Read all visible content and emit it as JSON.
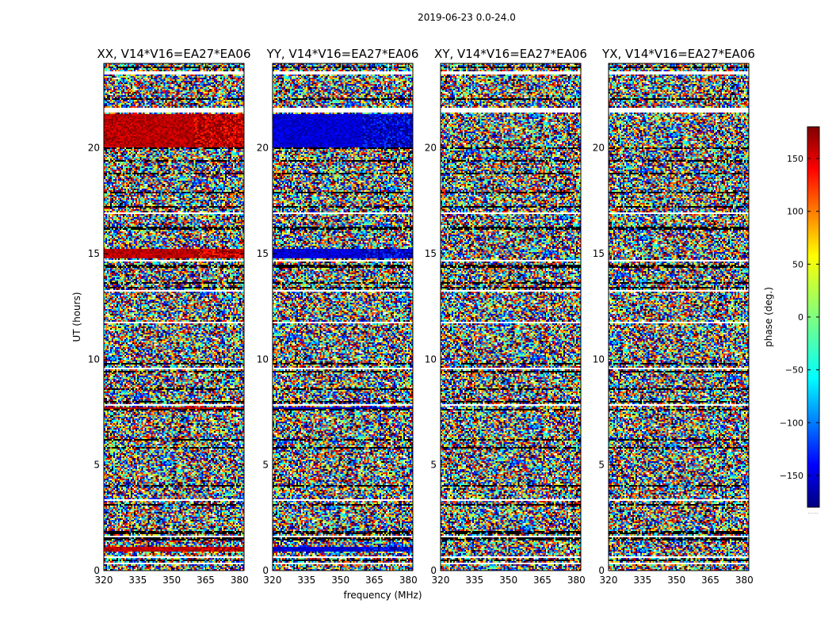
{
  "figure": {
    "suptitle": "2019-06-23 0.0-24.0"
  },
  "chart_data": {
    "type": "heatmap",
    "title": "2019-06-23 0.0-24.0",
    "xlabel": "frequency (MHz)",
    "ylabel": "UT (hours)",
    "xlim": [
      320,
      382
    ],
    "ylim": [
      0,
      24
    ],
    "xticks": [
      320,
      335,
      350,
      365,
      380
    ],
    "yticks": [
      0,
      5,
      10,
      15,
      20
    ],
    "colorbar": {
      "label": "phase (deg.)",
      "range": [
        -180,
        180
      ],
      "ticks": [
        -150,
        -100,
        -50,
        0,
        50,
        100,
        150
      ],
      "colormap": [
        "#00007f",
        "#0000ff",
        "#007fff",
        "#00ffff",
        "#7fff7f",
        "#ffff00",
        "#ff7f00",
        "#ff0000",
        "#7f0000"
      ],
      "footer": "......"
    },
    "panels": [
      {
        "title": "XX, V14*V16=EA27*EA06",
        "bias": 160,
        "bias_note": "red bands (~+160 deg) at 20-21.6 h, 14.8-15.2 h, 0.9-1.1 h, 7.6-7.7 h"
      },
      {
        "title": "YY, V14*V16=EA27*EA06",
        "bias": -150,
        "bias_note": "blue bands (~-150 deg) at 20-21.6 h, 14.8-15.2 h, 0.9-1.1 h"
      },
      {
        "title": "XY, V14*V16=EA27*EA06",
        "bias": null,
        "bias_note": "noise only"
      },
      {
        "title": "YX, V14*V16=EA27*EA06",
        "bias": null,
        "bias_note": "noise only"
      }
    ],
    "biased_bands_hours": [
      [
        20.0,
        21.6
      ],
      [
        14.8,
        15.2
      ],
      [
        0.9,
        1.1
      ],
      [
        7.6,
        7.7
      ]
    ],
    "flagged_gaps_hours": [
      [
        0.3,
        0.35
      ],
      [
        0.6,
        0.65
      ],
      [
        1.6,
        1.65
      ],
      [
        3.3,
        3.35
      ],
      [
        6.5,
        6.55
      ],
      [
        7.1,
        7.15
      ],
      [
        7.8,
        7.85
      ],
      [
        9.5,
        9.6
      ],
      [
        11.7,
        11.75
      ],
      [
        13.2,
        13.25
      ],
      [
        14.6,
        14.7
      ],
      [
        16.9,
        16.95
      ],
      [
        17.6,
        17.65
      ],
      [
        18.5,
        18.55
      ],
      [
        21.7,
        21.9
      ],
      [
        23.0,
        23.05
      ],
      [
        23.5,
        23.6
      ]
    ],
    "dark_row_hours": [
      0.5,
      1.5,
      1.8,
      3.1,
      4.0,
      5.8,
      6.2,
      7.6,
      8.0,
      8.6,
      9.4,
      9.8,
      13.4,
      13.6,
      14.4,
      16.2,
      17.2,
      17.9,
      18.8,
      19.4,
      20.0,
      21.8,
      22.3,
      23.8
    ]
  }
}
